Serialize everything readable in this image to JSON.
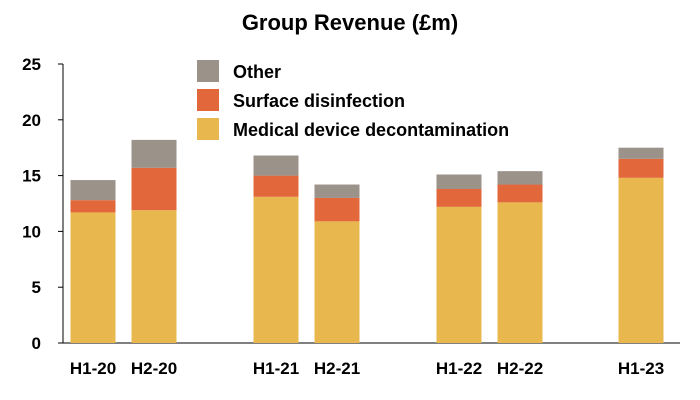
{
  "chart_data": {
    "type": "bar",
    "stacked": true,
    "title": "Group Revenue (£m)",
    "xlabel": "",
    "ylabel": "",
    "ylim": [
      0,
      25
    ],
    "yticks": [
      0,
      5,
      10,
      15,
      20,
      25
    ],
    "categories": [
      "H1-20",
      "H2-20",
      "H1-21",
      "H2-21",
      "H1-22",
      "H2-22",
      "H1-23"
    ],
    "series": [
      {
        "name": "Medical device decontamination",
        "color": "#E8B84E",
        "values": [
          11.7,
          11.9,
          13.1,
          10.9,
          12.2,
          12.6,
          14.8
        ]
      },
      {
        "name": "Surface disinfection",
        "color": "#E2673B",
        "values": [
          1.1,
          3.8,
          1.9,
          2.1,
          1.6,
          1.6,
          1.7
        ]
      },
      {
        "name": "Other",
        "color": "#9B928A",
        "values": [
          1.8,
          2.5,
          1.8,
          1.2,
          1.3,
          1.2,
          1.0
        ]
      }
    ],
    "legend_order": [
      "Other",
      "Surface disinfection",
      "Medical device decontamination"
    ],
    "legend_position": "top-center",
    "grid": false
  }
}
